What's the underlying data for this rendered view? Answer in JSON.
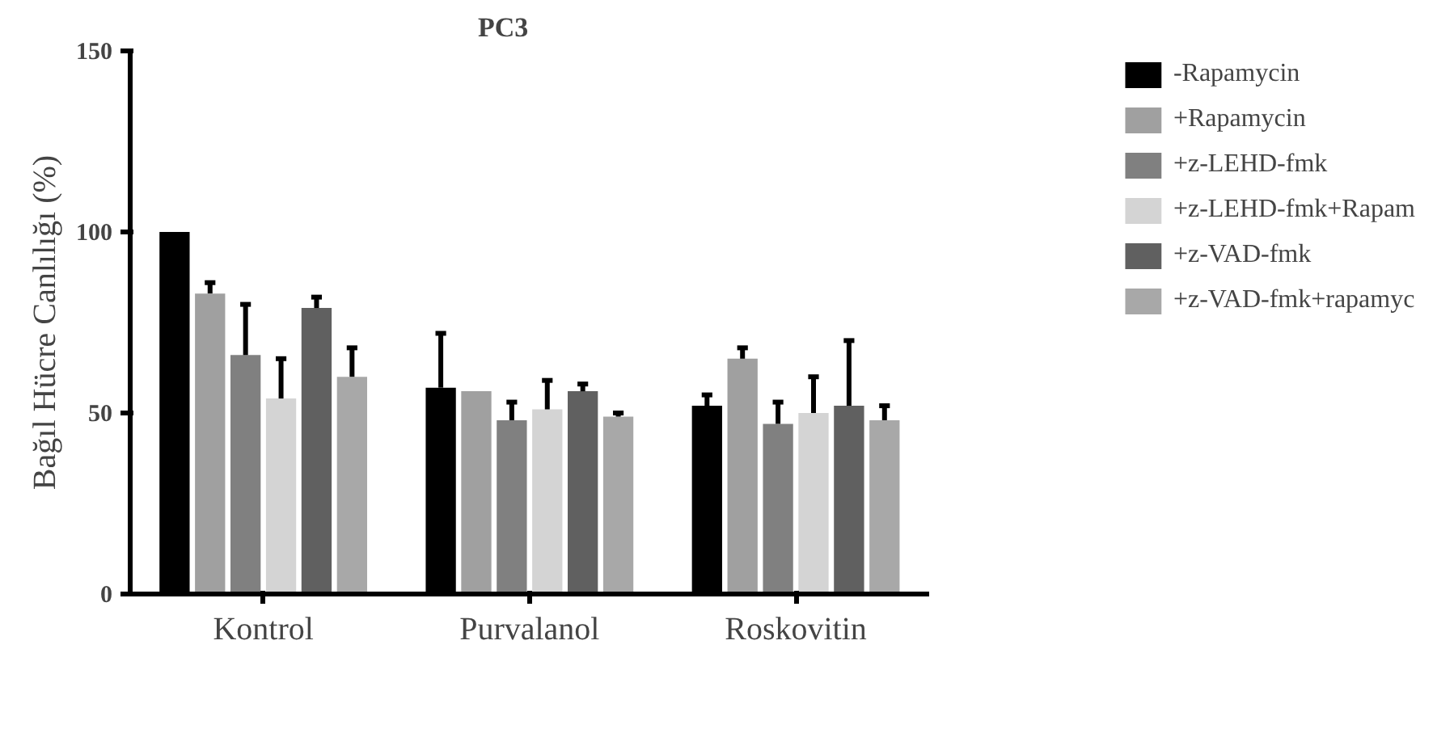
{
  "chart_data": {
    "type": "bar",
    "title": "PC3",
    "ylabel": "Bağıl Hücre Canlılığı (%)",
    "categories": [
      "Kontrol",
      "Purvalanol",
      "Roskovitin"
    ],
    "series": [
      {
        "name": "-Rapamycin",
        "color": "#000000",
        "values": [
          100,
          57,
          52
        ],
        "errors": [
          null,
          [
            57,
            72
          ],
          [
            52,
            55
          ]
        ]
      },
      {
        "name": "+Rapamycin",
        "color": "#a0a0a0",
        "values": [
          83,
          56,
          65
        ],
        "errors": [
          [
            83,
            86
          ],
          null,
          [
            65,
            68
          ]
        ]
      },
      {
        "name": "+z-LEHD-fmk",
        "color": "#808080",
        "values": [
          66,
          48,
          47
        ],
        "errors": [
          [
            66,
            80
          ],
          [
            48,
            53
          ],
          [
            47,
            53
          ]
        ]
      },
      {
        "name": "+z-LEHD-fmk+Rapam",
        "color": "#d4d4d4",
        "values": [
          54,
          51,
          50
        ],
        "errors": [
          [
            54,
            65
          ],
          [
            51,
            59
          ],
          [
            50,
            60
          ]
        ]
      },
      {
        "name": "+z-VAD-fmk",
        "color": "#606060",
        "values": [
          79,
          56,
          52
        ],
        "errors": [
          [
            79,
            82
          ],
          [
            56,
            58
          ],
          [
            52,
            70
          ]
        ]
      },
      {
        "name": "+z-VAD-fmk+rapamyc",
        "color": "#a8a8a8",
        "values": [
          60,
          49,
          48
        ],
        "errors": [
          [
            60,
            68
          ],
          [
            49,
            50
          ],
          [
            48,
            52
          ]
        ]
      }
    ],
    "ylim": [
      0,
      150
    ],
    "yticks": [
      0,
      50,
      100,
      150
    ],
    "grid": false,
    "legend": "right"
  }
}
